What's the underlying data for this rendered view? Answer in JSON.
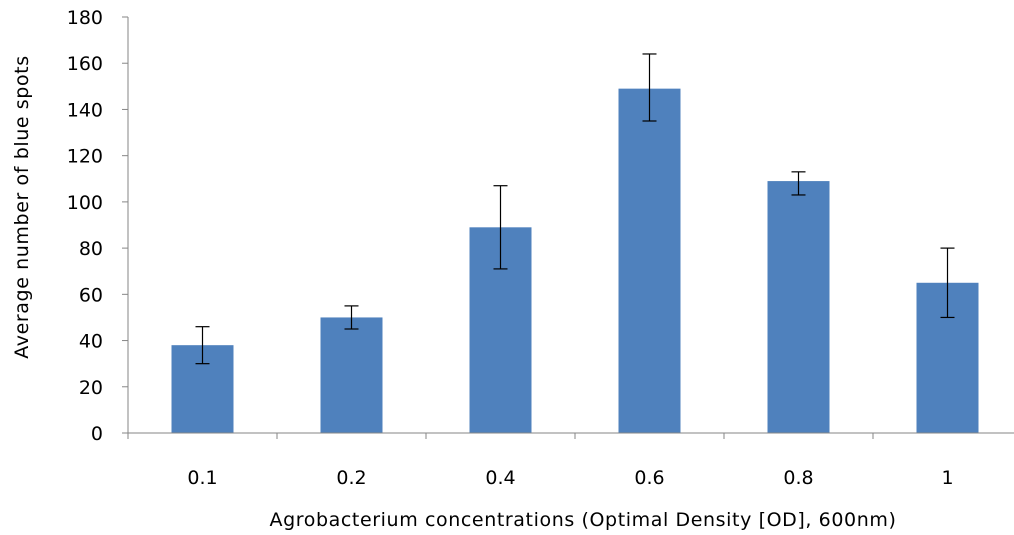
{
  "chart_data": {
    "type": "bar",
    "categories": [
      "0.1",
      "0.2",
      "0.4",
      "0.6",
      "0.8",
      "1"
    ],
    "values": [
      38,
      50,
      89,
      149,
      109,
      65
    ],
    "error_bars": [
      {
        "low": 30,
        "high": 46
      },
      {
        "low": 45,
        "high": 55
      },
      {
        "low": 71,
        "high": 107
      },
      {
        "low": 135,
        "high": 164
      },
      {
        "low": 103,
        "high": 113
      },
      {
        "low": 50,
        "high": 80
      }
    ],
    "title": "",
    "xlabel": "Agrobacterium concentrations (Optimal Density [OD], 600nm)",
    "ylabel": "Average number of blue spots",
    "ylim": [
      0,
      180
    ],
    "yticks": [
      0,
      20,
      40,
      60,
      80,
      100,
      120,
      140,
      160,
      180
    ],
    "grid": false,
    "legend": "none",
    "colors": {
      "bar": "#4f81bd",
      "axis": "#868686",
      "error_bar": "#000000"
    }
  }
}
